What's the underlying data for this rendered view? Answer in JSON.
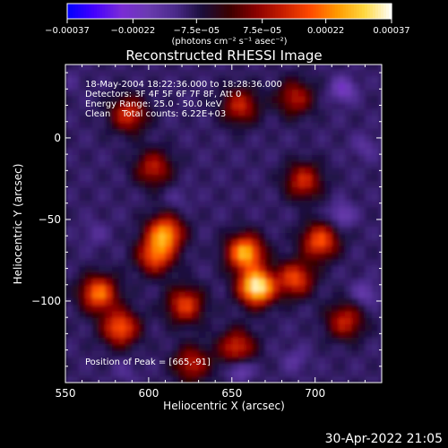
{
  "chart_data": {
    "type": "heatmap",
    "title": "Reconstructed RHESSI Image",
    "xlabel": "Heliocentric X (arcsec)",
    "ylabel": "Heliocentric Y (arcsec)",
    "xlim": [
      550,
      740
    ],
    "ylim": [
      -150,
      45
    ],
    "xticks": [
      550,
      600,
      650,
      700
    ],
    "xtick_labels": [
      "550",
      "600",
      "650",
      "700"
    ],
    "yticks": [
      0,
      -50,
      -100
    ],
    "ytick_labels": [
      "0",
      "−50",
      "−100"
    ],
    "colorbar": {
      "range": [
        -0.00037,
        0.00037
      ],
      "ticks": [
        -0.00037,
        -0.00022,
        -7.5e-05,
        7.5e-05,
        0.00022,
        0.00037
      ],
      "tick_labels": [
        "−0.00037",
        "−0.00022",
        "−7.5e−05",
        "7.5e−05",
        "0.00022",
        "0.00037"
      ],
      "unit_label": "(photons cm⁻² s⁻¹ asec⁻²)",
      "colormap": [
        "#0000ff",
        "#4400ff",
        "#7a2cd6",
        "#6a3bb0",
        "#4a2a8a",
        "#1a0e3a",
        "#3a0000",
        "#8a0000",
        "#c81e00",
        "#ff4a00",
        "#ff9a00",
        "#ffd840",
        "#ffffff"
      ]
    },
    "annotations": [
      "18-May-2004 18:22:36.000 to 18:28:36.000",
      "Detectors: 3F 4F 5F 6F 7F 8F, Att 0",
      "Energy Range: 25.0 - 50.0 keV",
      "Clean    Total counts: 6.22E+03"
    ],
    "peak_label": "Position of Peak = [665,-91]",
    "peak": [
      665,
      -91
    ],
    "hotspots": [
      {
        "x": 665,
        "y": -91,
        "value": 0.00037
      },
      {
        "x": 658,
        "y": -70,
        "value": 0.00028
      },
      {
        "x": 610,
        "y": -58,
        "value": 0.00024
      },
      {
        "x": 604,
        "y": -72,
        "value": 0.00018
      },
      {
        "x": 570,
        "y": -95,
        "value": 0.00022
      },
      {
        "x": 583,
        "y": -116,
        "value": 0.0002
      },
      {
        "x": 622,
        "y": -102,
        "value": 0.00016
      },
      {
        "x": 703,
        "y": -63,
        "value": 0.00019
      },
      {
        "x": 688,
        "y": -86,
        "value": 0.00017
      },
      {
        "x": 653,
        "y": -128,
        "value": 0.00014
      },
      {
        "x": 718,
        "y": -112,
        "value": 0.00012
      },
      {
        "x": 588,
        "y": 15,
        "value": 0.00014
      },
      {
        "x": 655,
        "y": 20,
        "value": 0.00012
      },
      {
        "x": 693,
        "y": -26,
        "value": 0.00013
      },
      {
        "x": 603,
        "y": -18,
        "value": 0.00011
      },
      {
        "x": 688,
        "y": 25,
        "value": 0.0001
      },
      {
        "x": 626,
        "y": -138,
        "value": 0.00011
      }
    ],
    "coldspots": [
      {
        "x": 717,
        "y": 30,
        "value": -0.00022
      },
      {
        "x": 730,
        "y": -5,
        "value": -0.00015
      },
      {
        "x": 716,
        "y": -47,
        "value": -0.0002
      },
      {
        "x": 730,
        "y": -95,
        "value": -0.00018
      },
      {
        "x": 655,
        "y": -141,
        "value": -0.00022
      },
      {
        "x": 688,
        "y": -136,
        "value": -0.00015
      },
      {
        "x": 568,
        "y": -58,
        "value": -0.00014
      },
      {
        "x": 618,
        "y": -37,
        "value": -0.00013
      },
      {
        "x": 553,
        "y": 35,
        "value": -0.00012
      },
      {
        "x": 586,
        "y": -143,
        "value": -0.00013
      }
    ]
  },
  "footer_timestamp": "30-Apr-2022 21:05"
}
